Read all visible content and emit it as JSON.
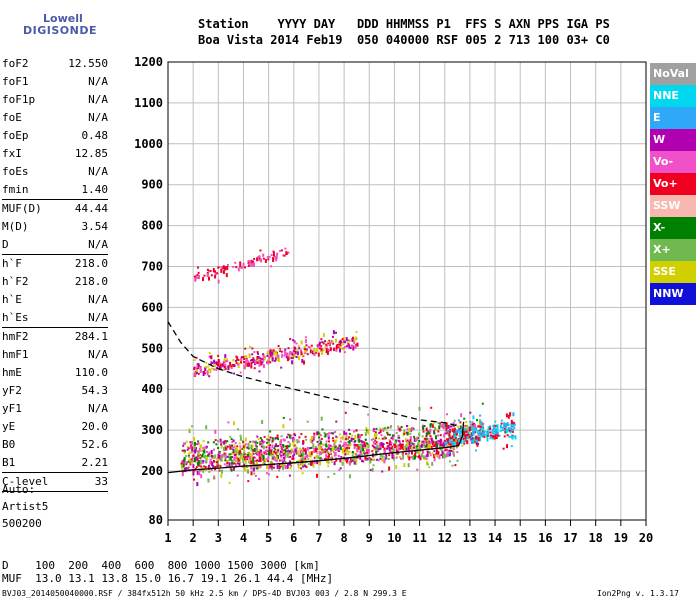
{
  "logo": {
    "line1": "Lowell",
    "line2": "DIGISONDE"
  },
  "header": {
    "row1": "Station    YYYY DAY   DDD HHMMSS P1  FFS S AXN PPS IGA PS",
    "row2": "Boa Vista 2014 Feb19  050 040000 RSF 005 2 713 100 03+ C0"
  },
  "params_groups": [
    [
      {
        "k": "foF2",
        "v": "12.550"
      },
      {
        "k": "foF1",
        "v": "N/A"
      },
      {
        "k": "foF1p",
        "v": "N/A"
      },
      {
        "k": "foE",
        "v": "N/A"
      },
      {
        "k": "foEp",
        "v": "0.48"
      },
      {
        "k": "fxI",
        "v": "12.85"
      },
      {
        "k": "foEs",
        "v": "N/A"
      },
      {
        "k": "fmin",
        "v": "1.40"
      }
    ],
    [
      {
        "k": "MUF(D)",
        "v": "44.44"
      },
      {
        "k": "M(D)",
        "v": "3.54"
      },
      {
        "k": "D",
        "v": "N/A"
      }
    ],
    [
      {
        "k": "h`F",
        "v": "218.0"
      },
      {
        "k": "h`F2",
        "v": "218.0"
      },
      {
        "k": "h`E",
        "v": "N/A"
      },
      {
        "k": "h`Es",
        "v": "N/A"
      }
    ],
    [
      {
        "k": "hmF2",
        "v": "284.1"
      },
      {
        "k": "hmF1",
        "v": "N/A"
      },
      {
        "k": "hmE",
        "v": "110.0"
      },
      {
        "k": "yF2",
        "v": "54.3"
      },
      {
        "k": "yF1",
        "v": "N/A"
      },
      {
        "k": "yE",
        "v": "20.0"
      },
      {
        "k": "B0",
        "v": "52.6"
      },
      {
        "k": "B1",
        "v": "2.21"
      }
    ],
    [
      {
        "k": "C-level",
        "v": "33"
      }
    ]
  ],
  "auto": {
    "line1": "Auto:",
    "line2": "Artist5",
    "line3": "500200"
  },
  "bottom": {
    "d_row": "D    100  200  400  600  800 1000 1500 3000 [km]",
    "muf_row": "MUF  13.0 13.1 13.8 15.0 16.7 19.1 26.1 44.4 [MHz]"
  },
  "footer": {
    "left": "BVJ03_2014050040000.RSF / 384fx512h 50 kHz 2.5 km / DPS-4D BVJ03 003 / 2.8 N 299.3 E",
    "right": "Ion2Png v. 1.3.17"
  },
  "legend": [
    {
      "label": "NoVal",
      "color": "#a0a0a0"
    },
    {
      "label": "NNE",
      "color": "#00d8f0"
    },
    {
      "label": "E",
      "color": "#30a8f8"
    },
    {
      "label": "W",
      "color": "#b000b0"
    },
    {
      "label": "Vo-",
      "color": "#f050c8"
    },
    {
      "label": "Vo+",
      "color": "#f00020"
    },
    {
      "label": "SSW",
      "color": "#f8b8b0"
    },
    {
      "label": "X-",
      "color": "#008000"
    },
    {
      "label": "X+",
      "color": "#70b850"
    },
    {
      "label": "SSE",
      "color": "#d0d000"
    },
    {
      "label": "NNW",
      "color": "#1010d8"
    }
  ],
  "chart_data": {
    "type": "scatter",
    "title": "",
    "xlabel": "",
    "ylabel": "",
    "xlim": [
      1,
      20
    ],
    "ylim": [
      80,
      1200
    ],
    "x_ticks": [
      1,
      2,
      3,
      4,
      5,
      6,
      7,
      8,
      9,
      10,
      11,
      12,
      13,
      14,
      15,
      16,
      17,
      18,
      19,
      20
    ],
    "y_ticks": [
      80,
      200,
      300,
      400,
      500,
      600,
      700,
      800,
      900,
      1000,
      1100,
      1200
    ],
    "grid": true,
    "legend_placement": "right",
    "profile_solid": [
      [
        1.0,
        196
      ],
      [
        2,
        203
      ],
      [
        3,
        207
      ],
      [
        4,
        212
      ],
      [
        5,
        216
      ],
      [
        6,
        220
      ],
      [
        7,
        225
      ],
      [
        8,
        231
      ],
      [
        9,
        238
      ],
      [
        10,
        245
      ],
      [
        11,
        251
      ],
      [
        12,
        257
      ],
      [
        12.55,
        262
      ],
      [
        12.7,
        285
      ],
      [
        12.75,
        320
      ]
    ],
    "profile_dashed": [
      [
        1.0,
        565
      ],
      [
        1.5,
        515
      ],
      [
        2,
        480
      ],
      [
        3,
        450
      ],
      [
        4,
        430
      ],
      [
        5,
        415
      ],
      [
        6,
        400
      ],
      [
        7,
        385
      ],
      [
        8,
        370
      ],
      [
        9,
        355
      ],
      [
        10,
        340
      ],
      [
        11,
        325
      ],
      [
        12,
        318
      ],
      [
        12.55,
        310
      ]
    ],
    "traces": [
      {
        "name": "F2 O-mode",
        "x0": 1.5,
        "x1": 12.5,
        "y0": 218,
        "y1": 262,
        "spread": 22,
        "count": 900,
        "colors": [
          "#f00020",
          "#f050c8",
          "#b000b0",
          "#70b850",
          "#d0d000"
        ]
      },
      {
        "name": "F2 X-mode",
        "x0": 1.5,
        "x1": 13.5,
        "y0": 245,
        "y1": 300,
        "spread": 28,
        "count": 800,
        "colors": [
          "#f00020",
          "#b000b0",
          "#f050c8",
          "#70b850",
          "#d0d000",
          "#008000"
        ]
      },
      {
        "name": "F2 2-hop",
        "x0": 2.0,
        "x1": 8.5,
        "y0": 450,
        "y1": 520,
        "spread": 14,
        "count": 400,
        "colors": [
          "#f00020",
          "#f050c8",
          "#b000b0",
          "#d0d000"
        ]
      },
      {
        "name": "F2 3-hop",
        "x0": 2.0,
        "x1": 5.8,
        "y0": 675,
        "y1": 740,
        "spread": 10,
        "count": 100,
        "colors": [
          "#f00020",
          "#f050c8"
        ]
      },
      {
        "name": "spread-F",
        "x0": 12.0,
        "x1": 14.8,
        "y0": 285,
        "y1": 305,
        "spread": 18,
        "count": 260,
        "colors": [
          "#30a8f8",
          "#00d8f0",
          "#f00020"
        ]
      }
    ]
  }
}
